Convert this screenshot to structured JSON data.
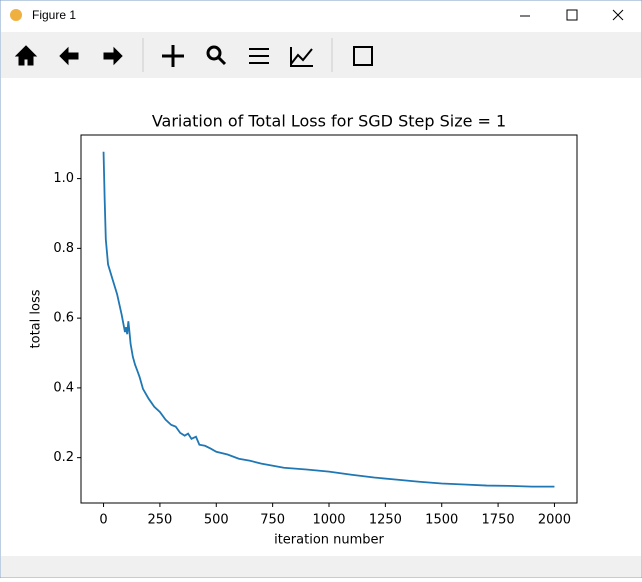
{
  "window": {
    "title": "Figure 1"
  },
  "chart_data": {
    "type": "line",
    "title": "Variation of Total Loss for SGD Step Size = 1",
    "x_label": "iteration number",
    "y_label": "total loss",
    "x": [
      0,
      5,
      10,
      20,
      40,
      60,
      80,
      95,
      100,
      105,
      110,
      115,
      120,
      130,
      140,
      150,
      160,
      175,
      200,
      225,
      250,
      275,
      300,
      320,
      340,
      360,
      375,
      390,
      410,
      425,
      450,
      475,
      500,
      550,
      600,
      650,
      700,
      800,
      900,
      1000,
      1100,
      1200,
      1300,
      1400,
      1500,
      1600,
      1700,
      1800,
      1900,
      2000
    ],
    "series": [
      {
        "name": "total loss",
        "color": "#1f77b4",
        "values": [
          1.077,
          0.94,
          0.826,
          0.754,
          0.711,
          0.669,
          0.611,
          0.56,
          0.574,
          0.554,
          0.591,
          0.56,
          0.526,
          0.489,
          0.466,
          0.449,
          0.431,
          0.397,
          0.369,
          0.346,
          0.331,
          0.309,
          0.294,
          0.289,
          0.271,
          0.263,
          0.269,
          0.254,
          0.26,
          0.237,
          0.234,
          0.226,
          0.217,
          0.209,
          0.197,
          0.191,
          0.183,
          0.171,
          0.166,
          0.16,
          0.151,
          0.143,
          0.137,
          0.131,
          0.126,
          0.123,
          0.12,
          0.119,
          0.117,
          0.117
        ]
      }
    ],
    "xlim": [
      -100,
      2100
    ],
    "ylim": [
      0.07,
      1.125
    ],
    "xticks": [
      0,
      250,
      500,
      750,
      1000,
      1250,
      1500,
      1750,
      2000
    ],
    "yticks": [
      0.2,
      0.4,
      0.6,
      0.8,
      {
        "value": 1,
        "label": "1.0"
      }
    ]
  }
}
